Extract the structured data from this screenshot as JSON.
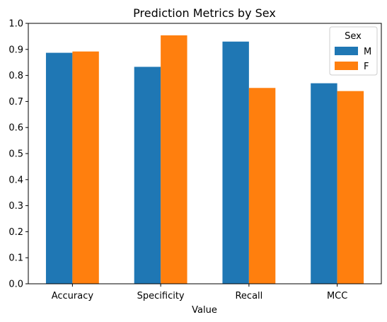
{
  "chart_data": {
    "type": "bar",
    "title": "Prediction Metrics by Sex",
    "xlabel": "Value",
    "ylabel": "",
    "categories": [
      "Accuracy",
      "Specificity",
      "Recall",
      "MCC"
    ],
    "series": [
      {
        "name": "M",
        "values": [
          0.887,
          0.833,
          0.93,
          0.77
        ],
        "color": "#1f77b4"
      },
      {
        "name": "F",
        "values": [
          0.892,
          0.954,
          0.752,
          0.74
        ],
        "color": "#ff7f0e"
      }
    ],
    "ylim": [
      0.0,
      1.0
    ],
    "yticks": [
      "0.0",
      "0.1",
      "0.2",
      "0.3",
      "0.4",
      "0.5",
      "0.6",
      "0.7",
      "0.8",
      "0.9",
      "1.0"
    ],
    "grid": false,
    "legend": {
      "title": "Sex",
      "placement": "top-right"
    }
  }
}
